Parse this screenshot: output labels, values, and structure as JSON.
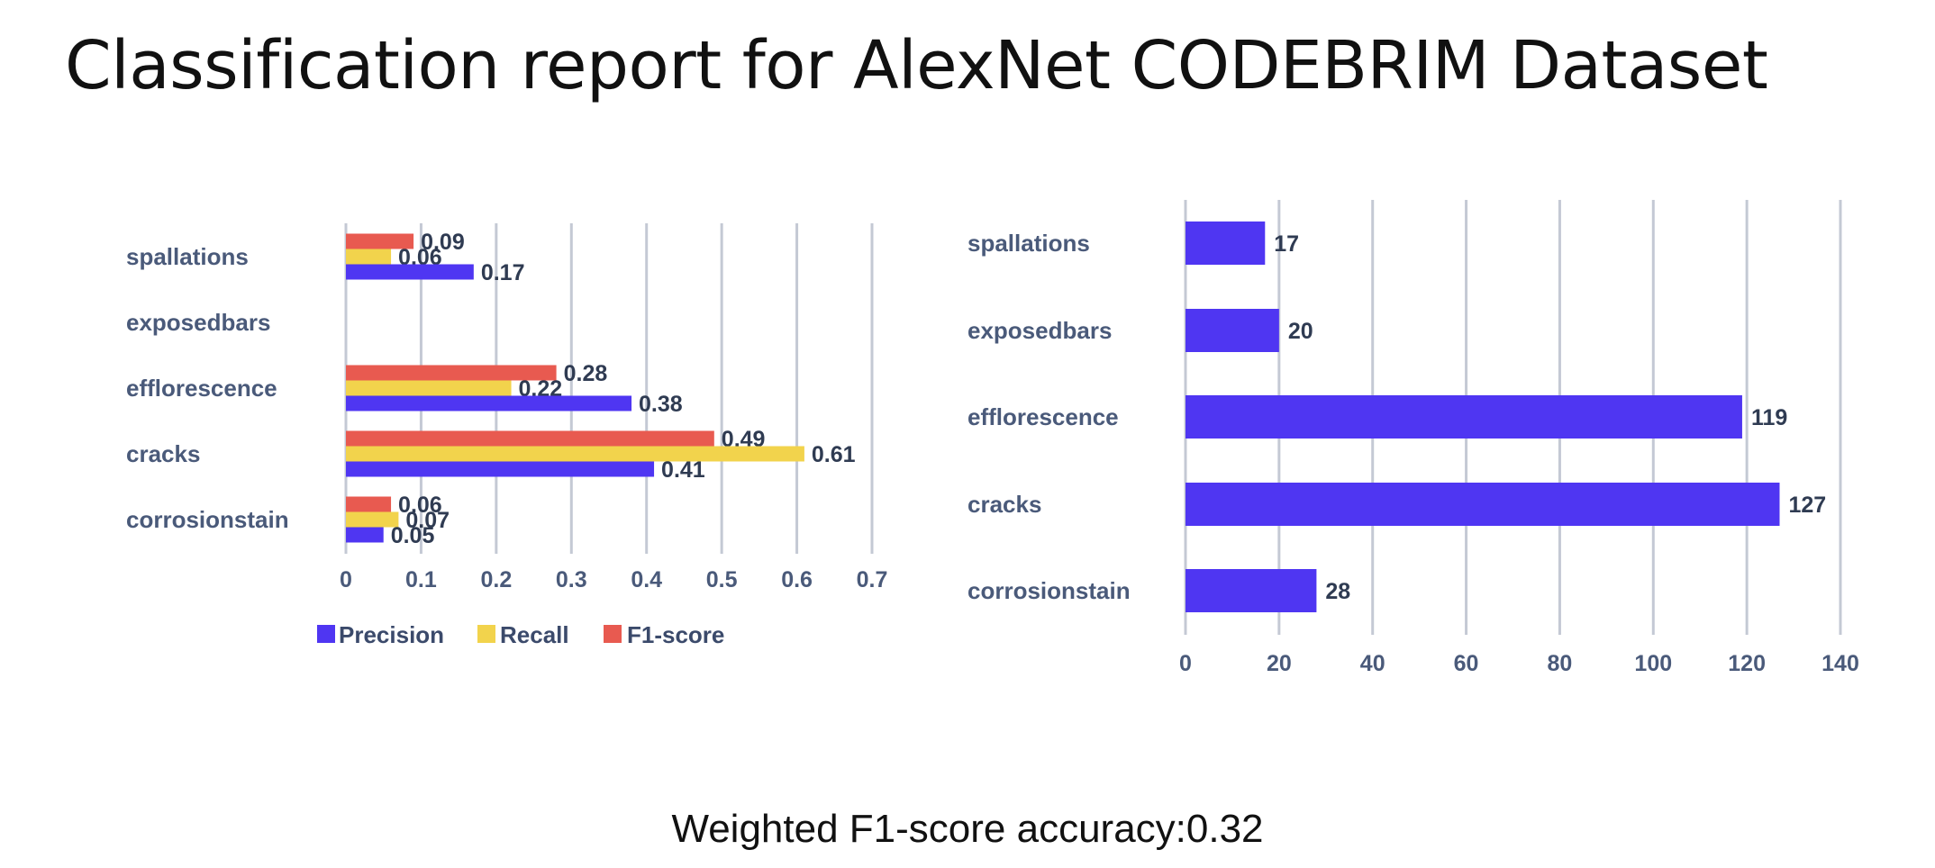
{
  "title": "Classification report for AlexNet CODEBRIM Dataset",
  "footer": "Weighted F1-score accuracy:0.32",
  "chart_data": [
    {
      "type": "bar",
      "orientation": "horizontal",
      "categories": [
        "spallations",
        "exposedbars",
        "efflorescence",
        "cracks",
        "corrosionstain"
      ],
      "series": [
        {
          "name": "F1-score",
          "color": "#e85a50",
          "values": [
            0.09,
            null,
            0.28,
            0.49,
            0.06
          ]
        },
        {
          "name": "Recall",
          "color": "#f2d34c",
          "values": [
            0.06,
            null,
            0.22,
            0.61,
            0.07
          ]
        },
        {
          "name": "Precision",
          "color": "#4f36f2",
          "values": [
            0.17,
            null,
            0.38,
            0.41,
            0.05
          ]
        }
      ],
      "legend_order": [
        "Precision",
        "Recall",
        "F1-score"
      ],
      "legend_position": "bottom",
      "xlim": [
        0,
        0.7
      ],
      "xticks": [
        "0",
        "0.1",
        "0.2",
        "0.3",
        "0.4",
        "0.5",
        "0.6",
        "0.7"
      ],
      "grid": true
    },
    {
      "type": "bar",
      "orientation": "horizontal",
      "categories": [
        "spallations",
        "exposedbars",
        "efflorescence",
        "cracks",
        "corrosionstain"
      ],
      "series": [
        {
          "color": "#4f36f2",
          "values": [
            17,
            20,
            119,
            127,
            28
          ]
        }
      ],
      "xlim": [
        0,
        140
      ],
      "xticks": [
        "0",
        "20",
        "40",
        "60",
        "80",
        "100",
        "120",
        "140"
      ],
      "grid": true
    }
  ]
}
